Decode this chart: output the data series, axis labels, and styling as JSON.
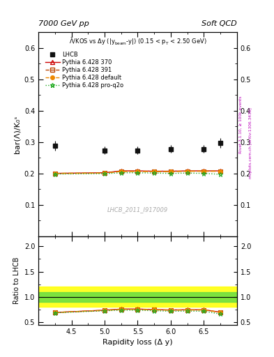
{
  "title_left": "7000 GeV pp",
  "title_right": "Soft QCD",
  "ylabel_main": "bar(Λ)/K₀ˢ",
  "ylabel_ratio": "Ratio to LHCB",
  "xlabel": "Rapidity loss (Δ y)",
  "watermark": "LHCB_2011_I917009",
  "right_label1": "Rivet 3.1.10, ≥ 100k events",
  "right_label2": "mcplots.cern.ch [arXiv:1306.3436]",
  "lhcb_x": [
    4.25,
    5.0,
    5.5,
    6.0,
    6.5,
    6.75
  ],
  "lhcb_y": [
    0.288,
    0.273,
    0.273,
    0.278,
    0.278,
    0.297
  ],
  "lhcb_yerr": [
    0.015,
    0.012,
    0.012,
    0.012,
    0.012,
    0.015
  ],
  "py370_x": [
    4.25,
    5.0,
    5.25,
    5.5,
    5.75,
    6.0,
    6.25,
    6.5,
    6.75
  ],
  "py370_y": [
    0.2,
    0.202,
    0.208,
    0.208,
    0.207,
    0.207,
    0.208,
    0.208,
    0.208
  ],
  "py391_x": [
    4.25,
    5.0,
    5.25,
    5.5,
    5.75,
    6.0,
    6.25,
    6.5,
    6.75
  ],
  "py391_y": [
    0.2,
    0.201,
    0.207,
    0.207,
    0.206,
    0.206,
    0.207,
    0.207,
    0.207
  ],
  "pydef_x": [
    4.25,
    5.0,
    5.25,
    5.5,
    5.75,
    6.0,
    6.25,
    6.5,
    6.75
  ],
  "pydef_y": [
    0.2,
    0.201,
    0.206,
    0.206,
    0.206,
    0.206,
    0.207,
    0.207,
    0.207
  ],
  "pyq2o_x": [
    4.25,
    5.0,
    5.25,
    5.5,
    5.75,
    6.0,
    6.25,
    6.5,
    6.75
  ],
  "pyq2o_y": [
    0.198,
    0.199,
    0.202,
    0.202,
    0.201,
    0.2,
    0.201,
    0.2,
    0.197
  ],
  "xlim": [
    4.0,
    7.0
  ],
  "ylim_main": [
    0.0,
    0.65
  ],
  "ylim_ratio": [
    0.45,
    2.2
  ],
  "lhcb_color": "#111111",
  "py370_color": "#cc0000",
  "py391_color": "#bb4400",
  "pydef_color": "#ee8800",
  "pyq2o_color": "#22aa22",
  "band_green_lo": 0.9,
  "band_green_hi": 1.1,
  "band_yellow_lo": 0.8,
  "band_yellow_hi": 1.2,
  "yticks_main": [
    0.1,
    0.2,
    0.3,
    0.4,
    0.5,
    0.6
  ],
  "yticks_ratio": [
    0.5,
    1.0,
    1.5,
    2.0
  ],
  "xticks_major": [
    4.5,
    5.0,
    5.5,
    6.0,
    6.5
  ]
}
